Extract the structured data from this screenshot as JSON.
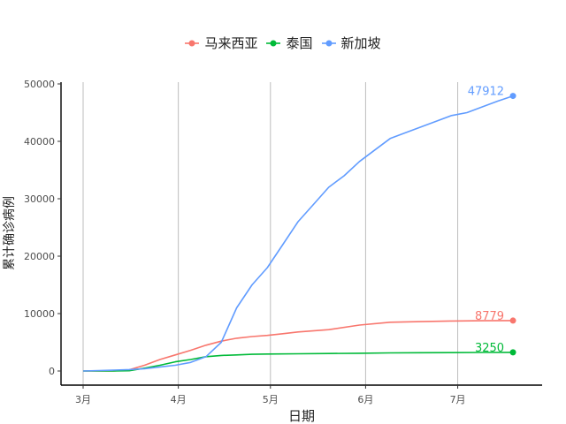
{
  "chart_data": {
    "type": "line",
    "title": "",
    "xlabel": "日期",
    "ylabel": "累计确诊病例",
    "x_ticks": [
      "3月",
      "4月",
      "5月",
      "6月",
      "7月"
    ],
    "y_ticks": [
      "0",
      "10000",
      "20000",
      "30000",
      "40000",
      "50000"
    ],
    "ylim": [
      0,
      50000
    ],
    "x_range_days": [
      0,
      142
    ],
    "x_tick_days": [
      0,
      31,
      61,
      92,
      122
    ],
    "y_tick_values": [
      0,
      10000,
      20000,
      30000,
      40000,
      50000
    ],
    "grid": "vertical-major",
    "legend_position": "top",
    "series": [
      {
        "name": "马来西亚",
        "color": "#F8766D",
        "end_label": "8779",
        "x": [
          0,
          10,
          15,
          20,
          25,
          30,
          35,
          40,
          45,
          50,
          55,
          60,
          65,
          70,
          80,
          90,
          100,
          110,
          120,
          130,
          140
        ],
        "y": [
          0,
          10,
          200,
          1000,
          2000,
          2800,
          3600,
          4500,
          5200,
          5700,
          6000,
          6200,
          6500,
          6800,
          7200,
          8000,
          8500,
          8600,
          8700,
          8750,
          8779
        ]
      },
      {
        "name": "泰国",
        "color": "#00BA38",
        "end_label": "3250",
        "x": [
          0,
          10,
          15,
          20,
          25,
          30,
          35,
          40,
          45,
          50,
          55,
          60,
          70,
          80,
          90,
          100,
          110,
          120,
          130,
          140
        ],
        "y": [
          0,
          10,
          50,
          500,
          1000,
          1600,
          2000,
          2500,
          2700,
          2800,
          2900,
          2950,
          3000,
          3050,
          3100,
          3150,
          3180,
          3200,
          3230,
          3250
        ]
      },
      {
        "name": "新加坡",
        "color": "#619CFF",
        "end_label": "47912",
        "x": [
          0,
          5,
          10,
          15,
          20,
          25,
          30,
          35,
          40,
          45,
          50,
          55,
          60,
          65,
          70,
          75,
          80,
          85,
          90,
          95,
          100,
          105,
          110,
          115,
          120,
          125,
          130,
          135,
          140
        ],
        "y": [
          0,
          80,
          150,
          250,
          400,
          700,
          1000,
          1500,
          2500,
          5000,
          11000,
          15000,
          18000,
          22000,
          26000,
          29000,
          32000,
          34000,
          36500,
          38500,
          40500,
          41500,
          42500,
          43500,
          44500,
          45000,
          46000,
          47000,
          47912
        ]
      }
    ]
  },
  "legend": {
    "items": [
      {
        "label": "马来西亚",
        "color": "#F8766D"
      },
      {
        "label": "泰国",
        "color": "#00BA38"
      },
      {
        "label": "新加坡",
        "color": "#619CFF"
      }
    ]
  }
}
